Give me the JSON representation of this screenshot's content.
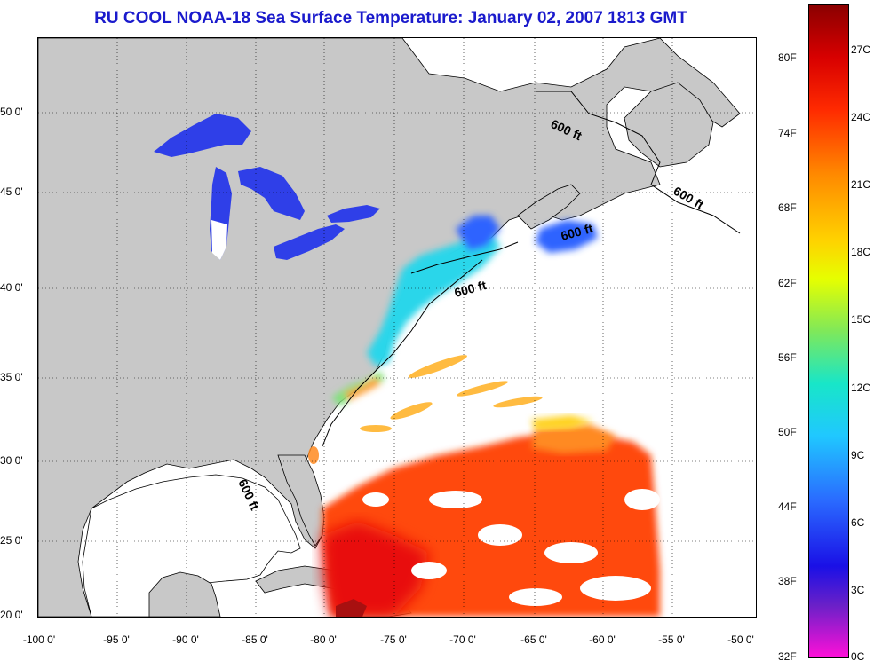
{
  "title": "RU COOL  NOAA-18  Sea Surface Temperature:  January 02, 2007 1813 GMT",
  "map": {
    "lat_labels": [
      "50 0'",
      "45 0'",
      "40 0'",
      "35 0'",
      "30 0'",
      "25 0'",
      "20 0'"
    ],
    "lon_labels": [
      "-100 0'",
      "-95 0'",
      "-90 0'",
      "-85 0'",
      "-80 0'",
      "-75 0'",
      "-70 0'",
      "-65 0'",
      "-60 0'",
      "-55 0'",
      "-50 0'"
    ],
    "contour_label": "600 ft",
    "land_color": "#c8c8c8",
    "cloud_color": "#ffffff"
  },
  "colorbar": {
    "fahrenheit_labels": [
      "80F",
      "74F",
      "68F",
      "62F",
      "56F",
      "50F",
      "44F",
      "38F",
      "32F"
    ],
    "celsius_labels": [
      "27C",
      "24C",
      "21C",
      "18C",
      "15C",
      "12C",
      "9C",
      "6C",
      "3C",
      "0C"
    ]
  }
}
